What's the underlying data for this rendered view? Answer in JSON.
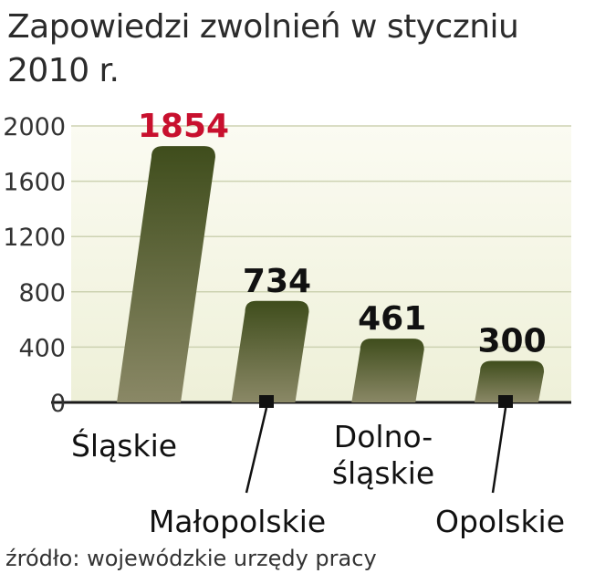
{
  "title": "Zapowiedzi zwolnień w styczniu 2010 r.",
  "source": "źródło: wojewódzkie urzędy pracy",
  "colors": {
    "bar_top": "#3f4d1c",
    "bar_bottom": "#8a8866",
    "highlight_value": "#c8102e",
    "plot_bg_top": "#fbfbf2",
    "plot_bg_bottom": "#eef0d8"
  },
  "chart_data": {
    "type": "bar",
    "categories": [
      "Śląskie",
      "Małopolskie",
      "Dolno-śląskie",
      "Opolskie"
    ],
    "category_label_lines": [
      [
        "Śląskie"
      ],
      [
        "Małopolskie"
      ],
      [
        "Dolno-",
        "śląskie"
      ],
      [
        "Opolskie"
      ]
    ],
    "values": [
      1854,
      734,
      461,
      300
    ],
    "value_labels": [
      "1854",
      "734",
      "461",
      "300"
    ],
    "highlighted_index": 0,
    "y_ticks": [
      0,
      400,
      800,
      1200,
      1600,
      2000
    ],
    "ylim": [
      0,
      2000
    ],
    "grid": true,
    "title": "Zapowiedzi zwolnień w styczniu 2010 r.",
    "xlabel": "",
    "ylabel": ""
  }
}
